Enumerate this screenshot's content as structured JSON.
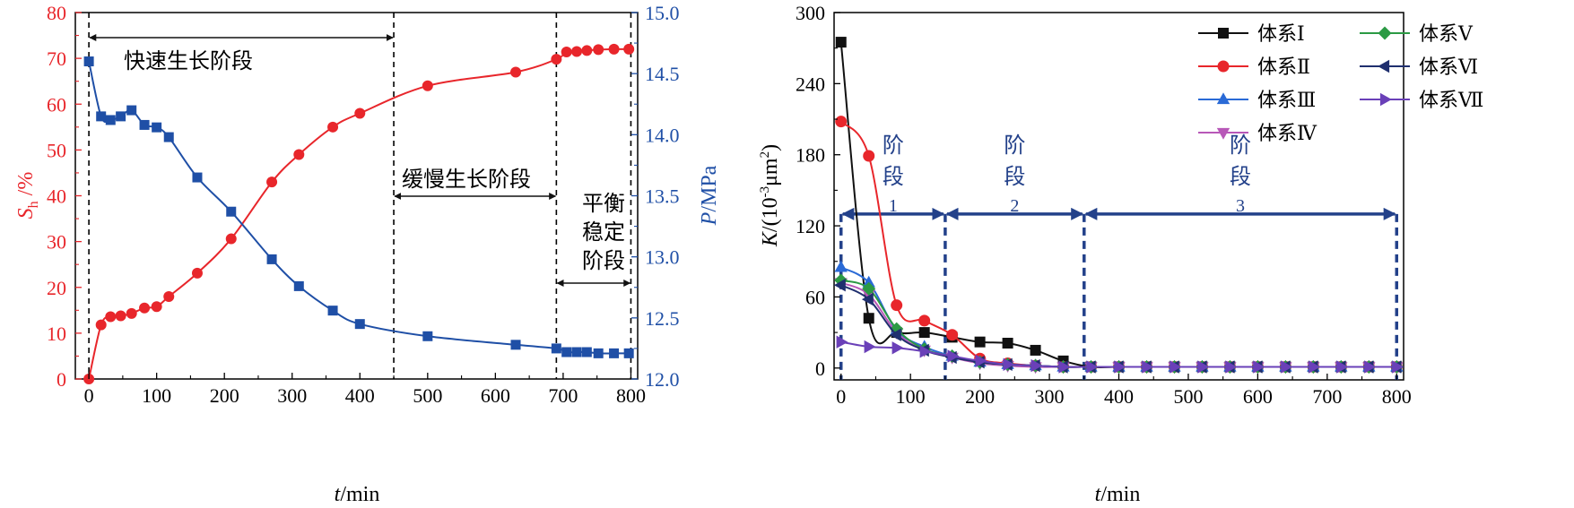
{
  "chart_data": [
    {
      "type": "line",
      "xlabel": "t/min",
      "ylabel_left": "Sh /%",
      "ylabel_right": "P/MPa",
      "xlim": [
        -20,
        810
      ],
      "ylim_left": [
        0,
        80
      ],
      "ylim_right": [
        12.0,
        15.0
      ],
      "xticks": [
        "0",
        "100",
        "200",
        "300",
        "400",
        "500",
        "600",
        "700",
        "800"
      ],
      "yticks_left": [
        "0",
        "10",
        "20",
        "30",
        "40",
        "50",
        "60",
        "70",
        "80"
      ],
      "yticks_right": [
        "12.0",
        "12.5",
        "13.0",
        "13.5",
        "14.0",
        "14.5",
        "15.0"
      ],
      "colors": {
        "Sh": "#e8262b",
        "P": "#1f4fa6"
      },
      "grid": false,
      "series": [
        {
          "axis": "left",
          "marker": "circle",
          "x": [
            0,
            18,
            32,
            47,
            63,
            82,
            100,
            118,
            160,
            210,
            270,
            310,
            360,
            400,
            500,
            630,
            690,
            705,
            720,
            735,
            752,
            775,
            797
          ],
          "values": [
            0,
            11.8,
            13.6,
            13.8,
            14.3,
            15.5,
            15.8,
            18.0,
            23.1,
            30.6,
            43.0,
            49.0,
            55.0,
            58.0,
            64.0,
            67.0,
            69.8,
            71.4,
            71.5,
            71.7,
            71.9,
            72.0,
            72.0
          ]
        },
        {
          "axis": "right",
          "marker": "square",
          "x": [
            0,
            18,
            32,
            47,
            63,
            82,
            100,
            118,
            160,
            210,
            270,
            310,
            360,
            400,
            500,
            630,
            690,
            705,
            720,
            735,
            752,
            775,
            797
          ],
          "values": [
            14.6,
            14.15,
            14.12,
            14.15,
            14.2,
            14.08,
            14.06,
            13.98,
            13.65,
            13.37,
            12.98,
            12.76,
            12.56,
            12.45,
            12.35,
            12.28,
            12.25,
            12.22,
            12.22,
            12.22,
            12.21,
            12.21,
            12.21
          ]
        }
      ],
      "vlines_x": [
        0,
        450,
        690,
        800
      ],
      "stages": [
        {
          "label": "快速生长阶段",
          "x_range": [
            0,
            450
          ]
        },
        {
          "label": "缓慢生长阶段",
          "x_range": [
            450,
            690
          ]
        },
        {
          "label_lines": [
            "平衡",
            "稳定",
            "阶段"
          ],
          "x_range": [
            690,
            800
          ]
        }
      ]
    },
    {
      "type": "line",
      "xlabel": "t/min",
      "ylabel": "K/(10-3μm2)",
      "xlim": [
        -10,
        810
      ],
      "ylim": [
        -10,
        300
      ],
      "xticks": [
        "0",
        "100",
        "200",
        "300",
        "400",
        "500",
        "600",
        "700",
        "800"
      ],
      "yticks": [
        "0",
        "60",
        "120",
        "180",
        "240",
        "300"
      ],
      "grid": false,
      "legend": "top-right",
      "x": [
        0,
        40,
        80,
        120,
        160,
        200,
        240,
        280,
        320,
        360,
        400,
        440,
        480,
        520,
        560,
        600,
        640,
        680,
        720,
        760,
        800
      ],
      "series": [
        {
          "name": "体系Ⅰ",
          "color": "#111111",
          "marker": "square",
          "values": [
            275,
            42,
            30,
            30,
            26,
            22,
            21,
            15,
            6,
            1,
            1,
            1,
            1,
            1,
            1,
            1,
            1,
            1,
            1,
            1,
            1
          ]
        },
        {
          "name": "体系Ⅱ",
          "color": "#e8262b",
          "marker": "circle",
          "values": [
            208,
            179,
            53,
            40,
            28,
            8,
            4,
            2,
            1,
            1,
            1,
            1,
            1,
            1,
            1,
            1,
            1,
            1,
            1,
            1,
            1
          ]
        },
        {
          "name": "体系Ⅲ",
          "color": "#2a6ad6",
          "marker": "triangle-up",
          "values": [
            85,
            72,
            32,
            18,
            10,
            5,
            3,
            2,
            1,
            1,
            1,
            1,
            1,
            1,
            1,
            1,
            1,
            1,
            1,
            1,
            1
          ]
        },
        {
          "name": "体系Ⅳ",
          "color": "#b858b8",
          "marker": "triangle-down",
          "values": [
            72,
            62,
            30,
            15,
            9,
            4,
            2,
            1,
            1,
            1,
            1,
            1,
            1,
            1,
            1,
            1,
            1,
            1,
            1,
            1,
            1
          ]
        },
        {
          "name": "体系Ⅴ",
          "color": "#2b9a44",
          "marker": "diamond",
          "values": [
            74,
            67,
            33,
            16,
            10,
            5,
            3,
            2,
            1,
            1,
            1,
            1,
            1,
            1,
            1,
            1,
            1,
            1,
            1,
            1,
            1
          ]
        },
        {
          "name": "体系Ⅵ",
          "color": "#1f2f6e",
          "marker": "triangle-left",
          "values": [
            70,
            58,
            28,
            15,
            9,
            5,
            3,
            2,
            1,
            1,
            1,
            1,
            1,
            1,
            1,
            1,
            1,
            1,
            1,
            1,
            1
          ]
        },
        {
          "name": "体系Ⅶ",
          "color": "#6a40b8",
          "marker": "triangle-right",
          "values": [
            22,
            18,
            17,
            14,
            10,
            6,
            3,
            2,
            1,
            1,
            1,
            1,
            1,
            1,
            1,
            1,
            1,
            1,
            1,
            1,
            1
          ]
        }
      ],
      "stage_color": "#23418a",
      "stage_arrow_y": 130,
      "stage_vlines_x": [
        0,
        150,
        350,
        800
      ],
      "stages": [
        {
          "label_lines": [
            "阶",
            "段",
            "1"
          ],
          "x_range": [
            0,
            150
          ]
        },
        {
          "label_lines": [
            "阶",
            "段",
            "2"
          ],
          "x_range": [
            150,
            350
          ]
        },
        {
          "label_lines": [
            "阶",
            "段",
            "3"
          ],
          "x_range": [
            350,
            800
          ]
        }
      ]
    }
  ]
}
